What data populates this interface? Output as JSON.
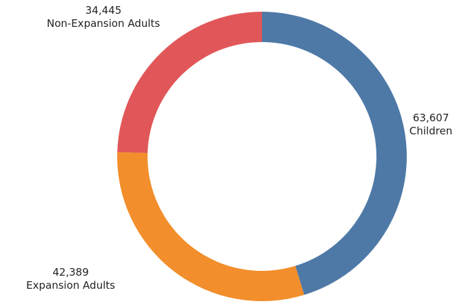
{
  "chart_data": {
    "type": "pie",
    "donut": true,
    "title": "",
    "slices": [
      {
        "label": "Children",
        "value": 63607,
        "display": "63,607",
        "color": "#4e79a7"
      },
      {
        "label": "Expansion Adults",
        "value": 42389,
        "display": "42,389",
        "color": "#f28e2b"
      },
      {
        "label": "Non-Expansion Adults",
        "value": 34445,
        "display": "34,445",
        "color": "#e15759"
      }
    ]
  }
}
